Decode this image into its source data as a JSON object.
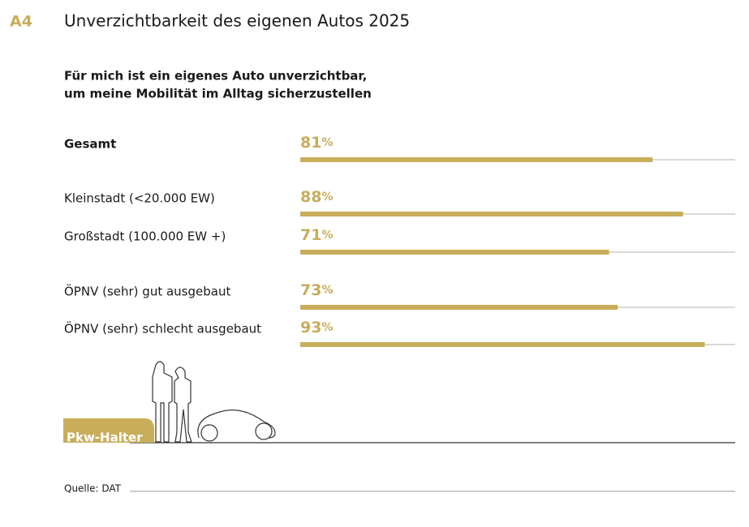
{
  "chart_data": {
    "type": "bar",
    "orientation": "horizontal",
    "badge": "A4",
    "title": "Unverzichtbarkeit des eigenen Autos 2025",
    "subtitle": [
      "Für mich ist ein eigenes Auto unverzichtbar,",
      "um meine Mobilität im Alltag sicherzustellen"
    ],
    "categories": [
      "Gesamt",
      "Kleinstadt (<20.000 EW)",
      "Großstadt (100.000 EW +)",
      "ÖPNV (sehr) gut ausgebaut",
      "ÖPNV (sehr) schlecht ausgebaut"
    ],
    "values": [
      81,
      88,
      71,
      73,
      93
    ],
    "value_labels": [
      "81%",
      "88%",
      "71%",
      "73%",
      "93%"
    ],
    "xlim": [
      0,
      100
    ],
    "color": "#c8ad5a",
    "track_color": "#d9d9d9",
    "tag": "Pkw-Halter",
    "source": "Quelle: DAT"
  }
}
